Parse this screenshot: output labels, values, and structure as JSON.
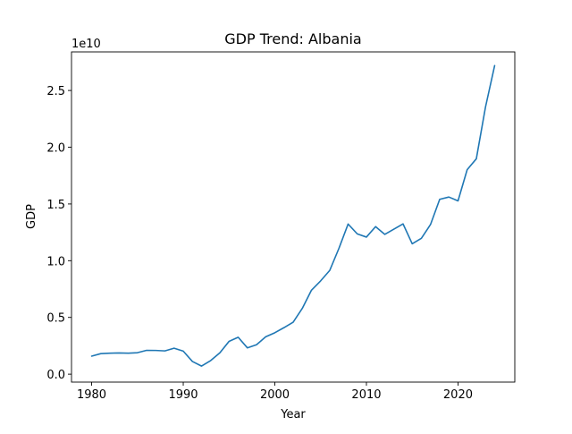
{
  "chart_data": {
    "type": "line",
    "title": "GDP Trend: Albania",
    "xlabel": "Year",
    "ylabel": "GDP",
    "y_offset_label": "1e10",
    "y_scale_factor": 10000000000,
    "xlim": [
      1977.8,
      2026.2
    ],
    "ylim": [
      -0.07,
      2.84
    ],
    "xticks": [
      1980,
      1990,
      2000,
      2010,
      2020
    ],
    "yticks": [
      0.0,
      0.5,
      1.0,
      1.5,
      2.0,
      2.5
    ],
    "ytick_labels": [
      "0.0",
      "0.5",
      "1.0",
      "1.5",
      "2.0",
      "2.5"
    ],
    "grid": false,
    "line_color": "#1f77b4",
    "series": [
      {
        "x": [
          1980,
          1981,
          1982,
          1983,
          1984,
          1985,
          1986,
          1987,
          1988,
          1989,
          1990,
          1991,
          1992,
          1993,
          1994,
          1995,
          1996,
          1997,
          1998,
          1999,
          2000,
          2001,
          2002,
          2003,
          2004,
          2005,
          2006,
          2007,
          2008,
          2009,
          2010,
          2011,
          2012,
          2013,
          2014,
          2015,
          2016,
          2017,
          2018,
          2019,
          2020,
          2021,
          2022,
          2023,
          2024
        ],
        "values": [
          0.159,
          0.181,
          0.185,
          0.187,
          0.185,
          0.189,
          0.21,
          0.209,
          0.205,
          0.229,
          0.203,
          0.112,
          0.071,
          0.12,
          0.188,
          0.289,
          0.325,
          0.232,
          0.259,
          0.329,
          0.365,
          0.41,
          0.458,
          0.58,
          0.74,
          0.822,
          0.915,
          1.109,
          1.323,
          1.236,
          1.208,
          1.3,
          1.232,
          1.278,
          1.324,
          1.149,
          1.197,
          1.319,
          1.541,
          1.561,
          1.527,
          1.802,
          1.898,
          2.354,
          2.719
        ]
      }
    ]
  }
}
